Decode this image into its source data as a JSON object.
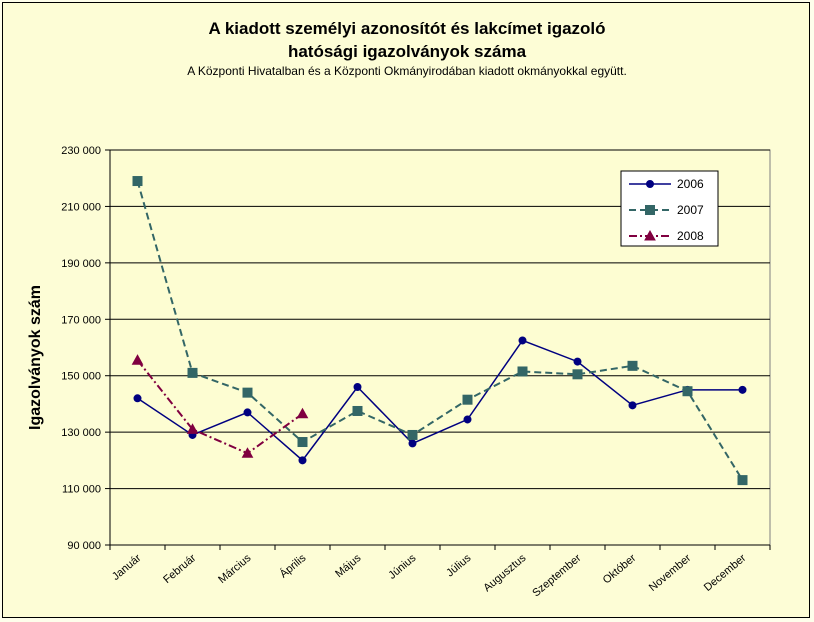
{
  "chart_data": {
    "type": "line",
    "title": "A kiadott személyi azonosítót és lakcímet igazoló",
    "title_line2": "hatósági igazolványok száma",
    "subtitle": "A Központi Hivatalban és a Központi Okmányirodában kiadott okmányokkal együtt.",
    "ylabel": "Igazolványok szám",
    "xlabel": "",
    "ylim": [
      90000,
      230000
    ],
    "yticks": [
      90000,
      110000,
      130000,
      150000,
      170000,
      190000,
      210000,
      230000
    ],
    "ytick_labels": [
      "90 000",
      "110 000",
      "130 000",
      "150 000",
      "170 000",
      "190 000",
      "210 000",
      "230 000"
    ],
    "categories": [
      "Január",
      "Február",
      "Március",
      "Április",
      "Május",
      "Június",
      "Július",
      "Augusztus",
      "Szeptember",
      "Október",
      "November",
      "December"
    ],
    "grid": true,
    "legend_position": "top-right",
    "series": [
      {
        "name": "2006",
        "color": "#000080",
        "dash": "solid",
        "marker": "circle",
        "values": [
          142000,
          129000,
          137000,
          120000,
          146000,
          126000,
          134500,
          162500,
          155000,
          139500,
          145000,
          145000
        ]
      },
      {
        "name": "2007",
        "color": "#336666",
        "dash": "dashed",
        "marker": "square",
        "values": [
          219000,
          151000,
          144000,
          126500,
          137500,
          129000,
          141500,
          151500,
          150500,
          153500,
          144500,
          113000
        ]
      },
      {
        "name": "2008",
        "color": "#800040",
        "dash": "dashdot",
        "marker": "triangle",
        "values": [
          155500,
          131000,
          122500,
          136500,
          null,
          null,
          null,
          null,
          null,
          null,
          null,
          null
        ]
      }
    ]
  }
}
